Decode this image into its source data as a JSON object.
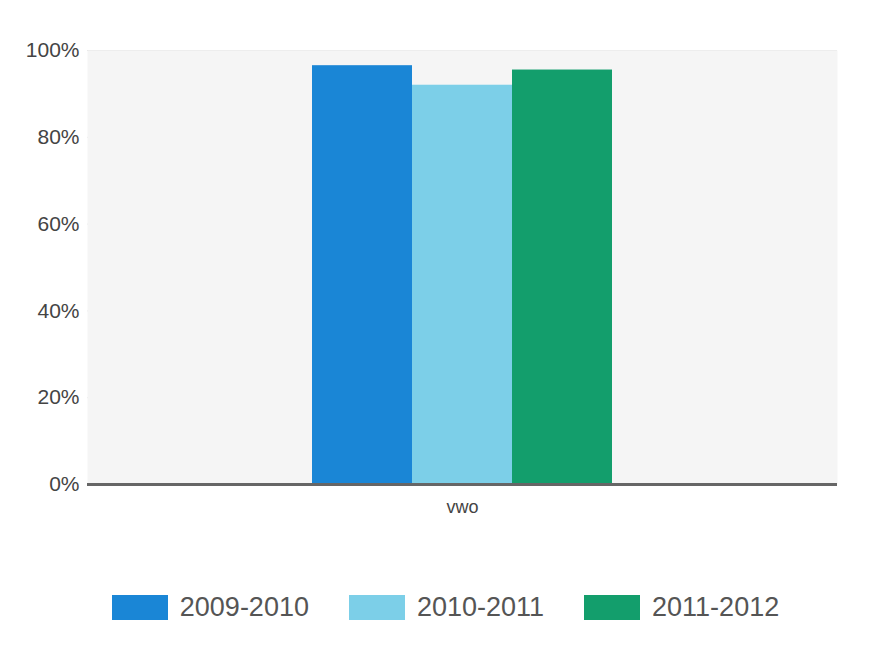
{
  "chart_data": {
    "type": "bar",
    "categories": [
      "vwo"
    ],
    "series": [
      {
        "name": "2009-2010",
        "color": "#1a86d6",
        "values": [
          96.5
        ]
      },
      {
        "name": "2010-2011",
        "color": "#7ccfe8",
        "values": [
          92
        ]
      },
      {
        "name": "2011-2012",
        "color": "#139e6c",
        "values": [
          95.5
        ]
      }
    ],
    "ylim": [
      0,
      100
    ],
    "yticks": [
      {
        "value": 0,
        "label": "0%"
      },
      {
        "value": 20,
        "label": "20%"
      },
      {
        "value": 40,
        "label": "40%"
      },
      {
        "value": 60,
        "label": "60%"
      },
      {
        "value": 80,
        "label": "80%"
      },
      {
        "value": 100,
        "label": "100%"
      }
    ],
    "grid": true,
    "legend": "bottom"
  }
}
